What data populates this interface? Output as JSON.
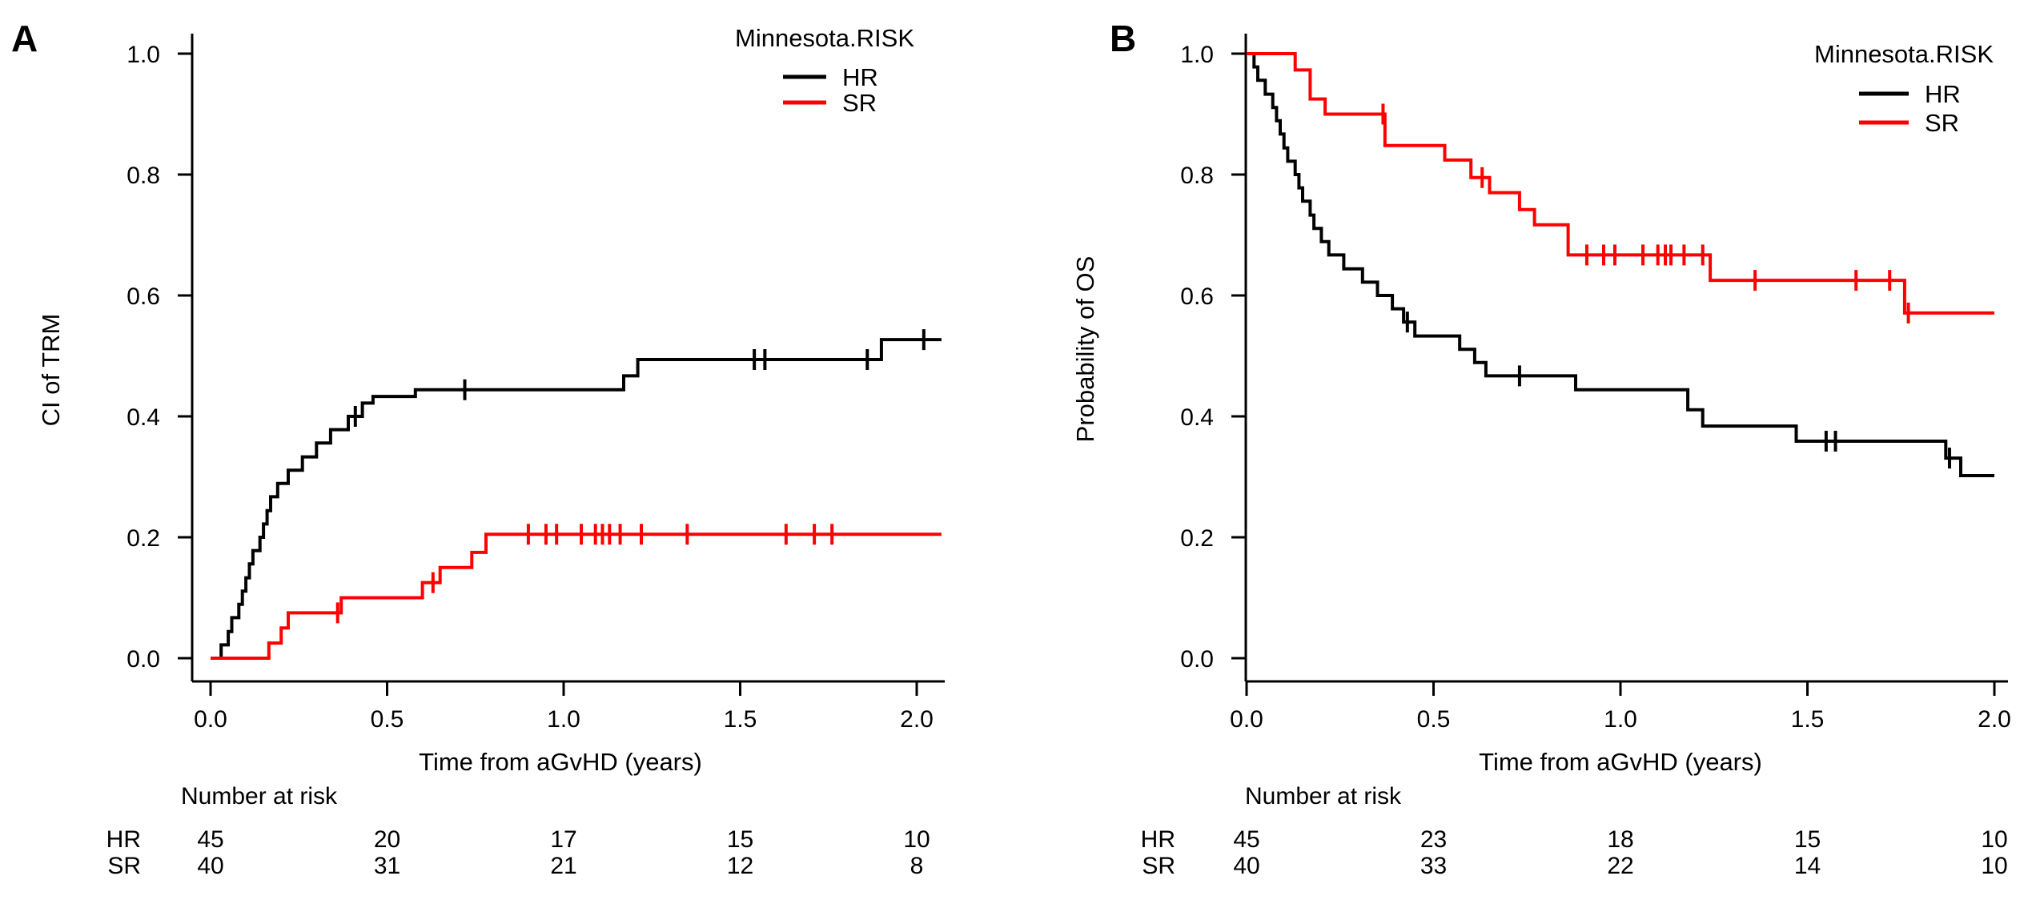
{
  "figure": {
    "background": "#ffffff",
    "panel_label_color": "#1d4f7d",
    "axis_color": "#000000",
    "hr_color": "#000000",
    "sr_color": "#ff0000",
    "legend_title": "Minnesota.RISK",
    "legend_entries": [
      "HR",
      "SR"
    ],
    "xlabel": "Time from aGvHD (years)",
    "x_tick_labels": [
      "0.0",
      "0.5",
      "1.0",
      "1.5",
      "2.0"
    ],
    "y_tick_labels": [
      "0.0",
      "0.2",
      "0.4",
      "0.6",
      "0.8",
      "1.0"
    ],
    "number_at_risk_label": "Number at risk"
  },
  "chart_data": [
    {
      "panel": "A",
      "type": "line",
      "subtype": "kaplan-meier-step",
      "title": "",
      "xlabel": "Time from aGvHD (years)",
      "ylabel": "CI of TRM",
      "xlim": [
        0,
        2.07
      ],
      "ylim": [
        0.0,
        1.0
      ],
      "x_tick_values": [
        0.0,
        0.5,
        1.0,
        1.5,
        2.0
      ],
      "y_tick_values": [
        0.0,
        0.2,
        0.4,
        0.6,
        0.8,
        1.0
      ],
      "legend_title": "Minnesota.RISK",
      "legend_position": "top-right",
      "grid": false,
      "series": [
        {
          "name": "HR",
          "color": "#000000",
          "start": [
            0.0,
            0.0
          ],
          "end_x": 2.07,
          "steps": [
            [
              0.03,
              0.022
            ],
            [
              0.05,
              0.044
            ],
            [
              0.06,
              0.067
            ],
            [
              0.08,
              0.089
            ],
            [
              0.09,
              0.111
            ],
            [
              0.1,
              0.133
            ],
            [
              0.11,
              0.156
            ],
            [
              0.12,
              0.178
            ],
            [
              0.14,
              0.2
            ],
            [
              0.15,
              0.222
            ],
            [
              0.16,
              0.244
            ],
            [
              0.17,
              0.267
            ],
            [
              0.19,
              0.289
            ],
            [
              0.22,
              0.311
            ],
            [
              0.26,
              0.333
            ],
            [
              0.3,
              0.356
            ],
            [
              0.34,
              0.378
            ],
            [
              0.39,
              0.4
            ],
            [
              0.43,
              0.422
            ],
            [
              0.46,
              0.433
            ],
            [
              0.58,
              0.444
            ],
            [
              1.17,
              0.467
            ],
            [
              1.21,
              0.494
            ],
            [
              1.9,
              0.527
            ]
          ],
          "censors": [
            [
              0.41,
              0.4
            ],
            [
              0.72,
              0.444
            ],
            [
              1.54,
              0.494
            ],
            [
              1.57,
              0.494
            ],
            [
              1.86,
              0.494
            ],
            [
              2.02,
              0.527
            ]
          ]
        },
        {
          "name": "SR",
          "color": "#ff0000",
          "start": [
            0.0,
            0.0
          ],
          "end_x": 2.07,
          "steps": [
            [
              0.165,
              0.025
            ],
            [
              0.2,
              0.05
            ],
            [
              0.22,
              0.075
            ],
            [
              0.37,
              0.1
            ],
            [
              0.6,
              0.125
            ],
            [
              0.65,
              0.15
            ],
            [
              0.74,
              0.175
            ],
            [
              0.78,
              0.205
            ]
          ],
          "censors": [
            [
              0.36,
              0.075
            ],
            [
              0.63,
              0.125
            ],
            [
              0.9,
              0.205
            ],
            [
              0.95,
              0.205
            ],
            [
              0.98,
              0.205
            ],
            [
              1.05,
              0.205
            ],
            [
              1.09,
              0.205
            ],
            [
              1.11,
              0.205
            ],
            [
              1.13,
              0.205
            ],
            [
              1.16,
              0.205
            ],
            [
              1.22,
              0.205
            ],
            [
              1.35,
              0.205
            ],
            [
              1.63,
              0.205
            ],
            [
              1.71,
              0.205
            ],
            [
              1.76,
              0.205
            ]
          ]
        }
      ],
      "number_at_risk": {
        "label": "Number at risk",
        "times": [
          0.0,
          0.5,
          1.0,
          1.5,
          2.0
        ],
        "rows": [
          {
            "label": "HR",
            "values": [
              "45",
              "20",
              "17",
              "15",
              "10"
            ]
          },
          {
            "label": "SR",
            "values": [
              "40",
              "31",
              "21",
              "12",
              "8"
            ]
          }
        ]
      }
    },
    {
      "panel": "B",
      "type": "line",
      "subtype": "kaplan-meier-step",
      "title": "",
      "xlabel": "Time from aGvHD (years)",
      "ylabel": "Probability of OS",
      "xlim": [
        0,
        2.0
      ],
      "ylim": [
        0.0,
        1.0
      ],
      "x_tick_values": [
        0.0,
        0.5,
        1.0,
        1.5,
        2.0
      ],
      "y_tick_values": [
        0.0,
        0.2,
        0.4,
        0.6,
        0.8,
        1.0
      ],
      "legend_title": "Minnesota.RISK",
      "legend_position": "top-right",
      "grid": false,
      "series": [
        {
          "name": "HR",
          "color": "#000000",
          "start": [
            0.0,
            1.0
          ],
          "end_x": 2.0,
          "steps": [
            [
              0.02,
              0.978
            ],
            [
              0.03,
              0.956
            ],
            [
              0.05,
              0.933
            ],
            [
              0.07,
              0.911
            ],
            [
              0.08,
              0.889
            ],
            [
              0.09,
              0.867
            ],
            [
              0.1,
              0.844
            ],
            [
              0.11,
              0.822
            ],
            [
              0.13,
              0.8
            ],
            [
              0.14,
              0.778
            ],
            [
              0.15,
              0.756
            ],
            [
              0.17,
              0.733
            ],
            [
              0.18,
              0.711
            ],
            [
              0.2,
              0.689
            ],
            [
              0.22,
              0.667
            ],
            [
              0.26,
              0.644
            ],
            [
              0.31,
              0.622
            ],
            [
              0.35,
              0.6
            ],
            [
              0.39,
              0.578
            ],
            [
              0.42,
              0.556
            ],
            [
              0.45,
              0.533
            ],
            [
              0.57,
              0.511
            ],
            [
              0.61,
              0.489
            ],
            [
              0.64,
              0.467
            ],
            [
              0.88,
              0.444
            ],
            [
              1.18,
              0.411
            ],
            [
              1.22,
              0.384
            ],
            [
              1.47,
              0.359
            ],
            [
              1.87,
              0.331
            ],
            [
              1.91,
              0.302
            ]
          ],
          "censors": [
            [
              0.43,
              0.556
            ],
            [
              0.73,
              0.467
            ],
            [
              1.55,
              0.359
            ],
            [
              1.575,
              0.359
            ],
            [
              1.88,
              0.331
            ]
          ]
        },
        {
          "name": "SR",
          "color": "#ff0000",
          "start": [
            0.0,
            1.0
          ],
          "end_x": 2.0,
          "steps": [
            [
              0.13,
              0.973
            ],
            [
              0.17,
              0.925
            ],
            [
              0.21,
              0.9
            ],
            [
              0.37,
              0.848
            ],
            [
              0.53,
              0.824
            ],
            [
              0.6,
              0.795
            ],
            [
              0.65,
              0.77
            ],
            [
              0.73,
              0.742
            ],
            [
              0.77,
              0.717
            ],
            [
              0.86,
              0.667
            ],
            [
              1.24,
              0.625
            ],
            [
              1.76,
              0.571
            ]
          ],
          "censors": [
            [
              0.365,
              0.9
            ],
            [
              0.63,
              0.795
            ],
            [
              0.91,
              0.667
            ],
            [
              0.955,
              0.667
            ],
            [
              0.985,
              0.667
            ],
            [
              1.06,
              0.667
            ],
            [
              1.1,
              0.667
            ],
            [
              1.12,
              0.667
            ],
            [
              1.135,
              0.667
            ],
            [
              1.17,
              0.667
            ],
            [
              1.22,
              0.667
            ],
            [
              1.36,
              0.625
            ],
            [
              1.63,
              0.625
            ],
            [
              1.72,
              0.625
            ],
            [
              1.77,
              0.571
            ]
          ]
        }
      ],
      "number_at_risk": {
        "label": "Number at risk",
        "times": [
          0.0,
          0.5,
          1.0,
          1.5,
          2.0
        ],
        "rows": [
          {
            "label": "HR",
            "values": [
              "45",
              "23",
              "18",
              "15",
              "10"
            ]
          },
          {
            "label": "SR",
            "values": [
              "40",
              "33",
              "22",
              "14",
              "10"
            ]
          }
        ]
      }
    }
  ]
}
